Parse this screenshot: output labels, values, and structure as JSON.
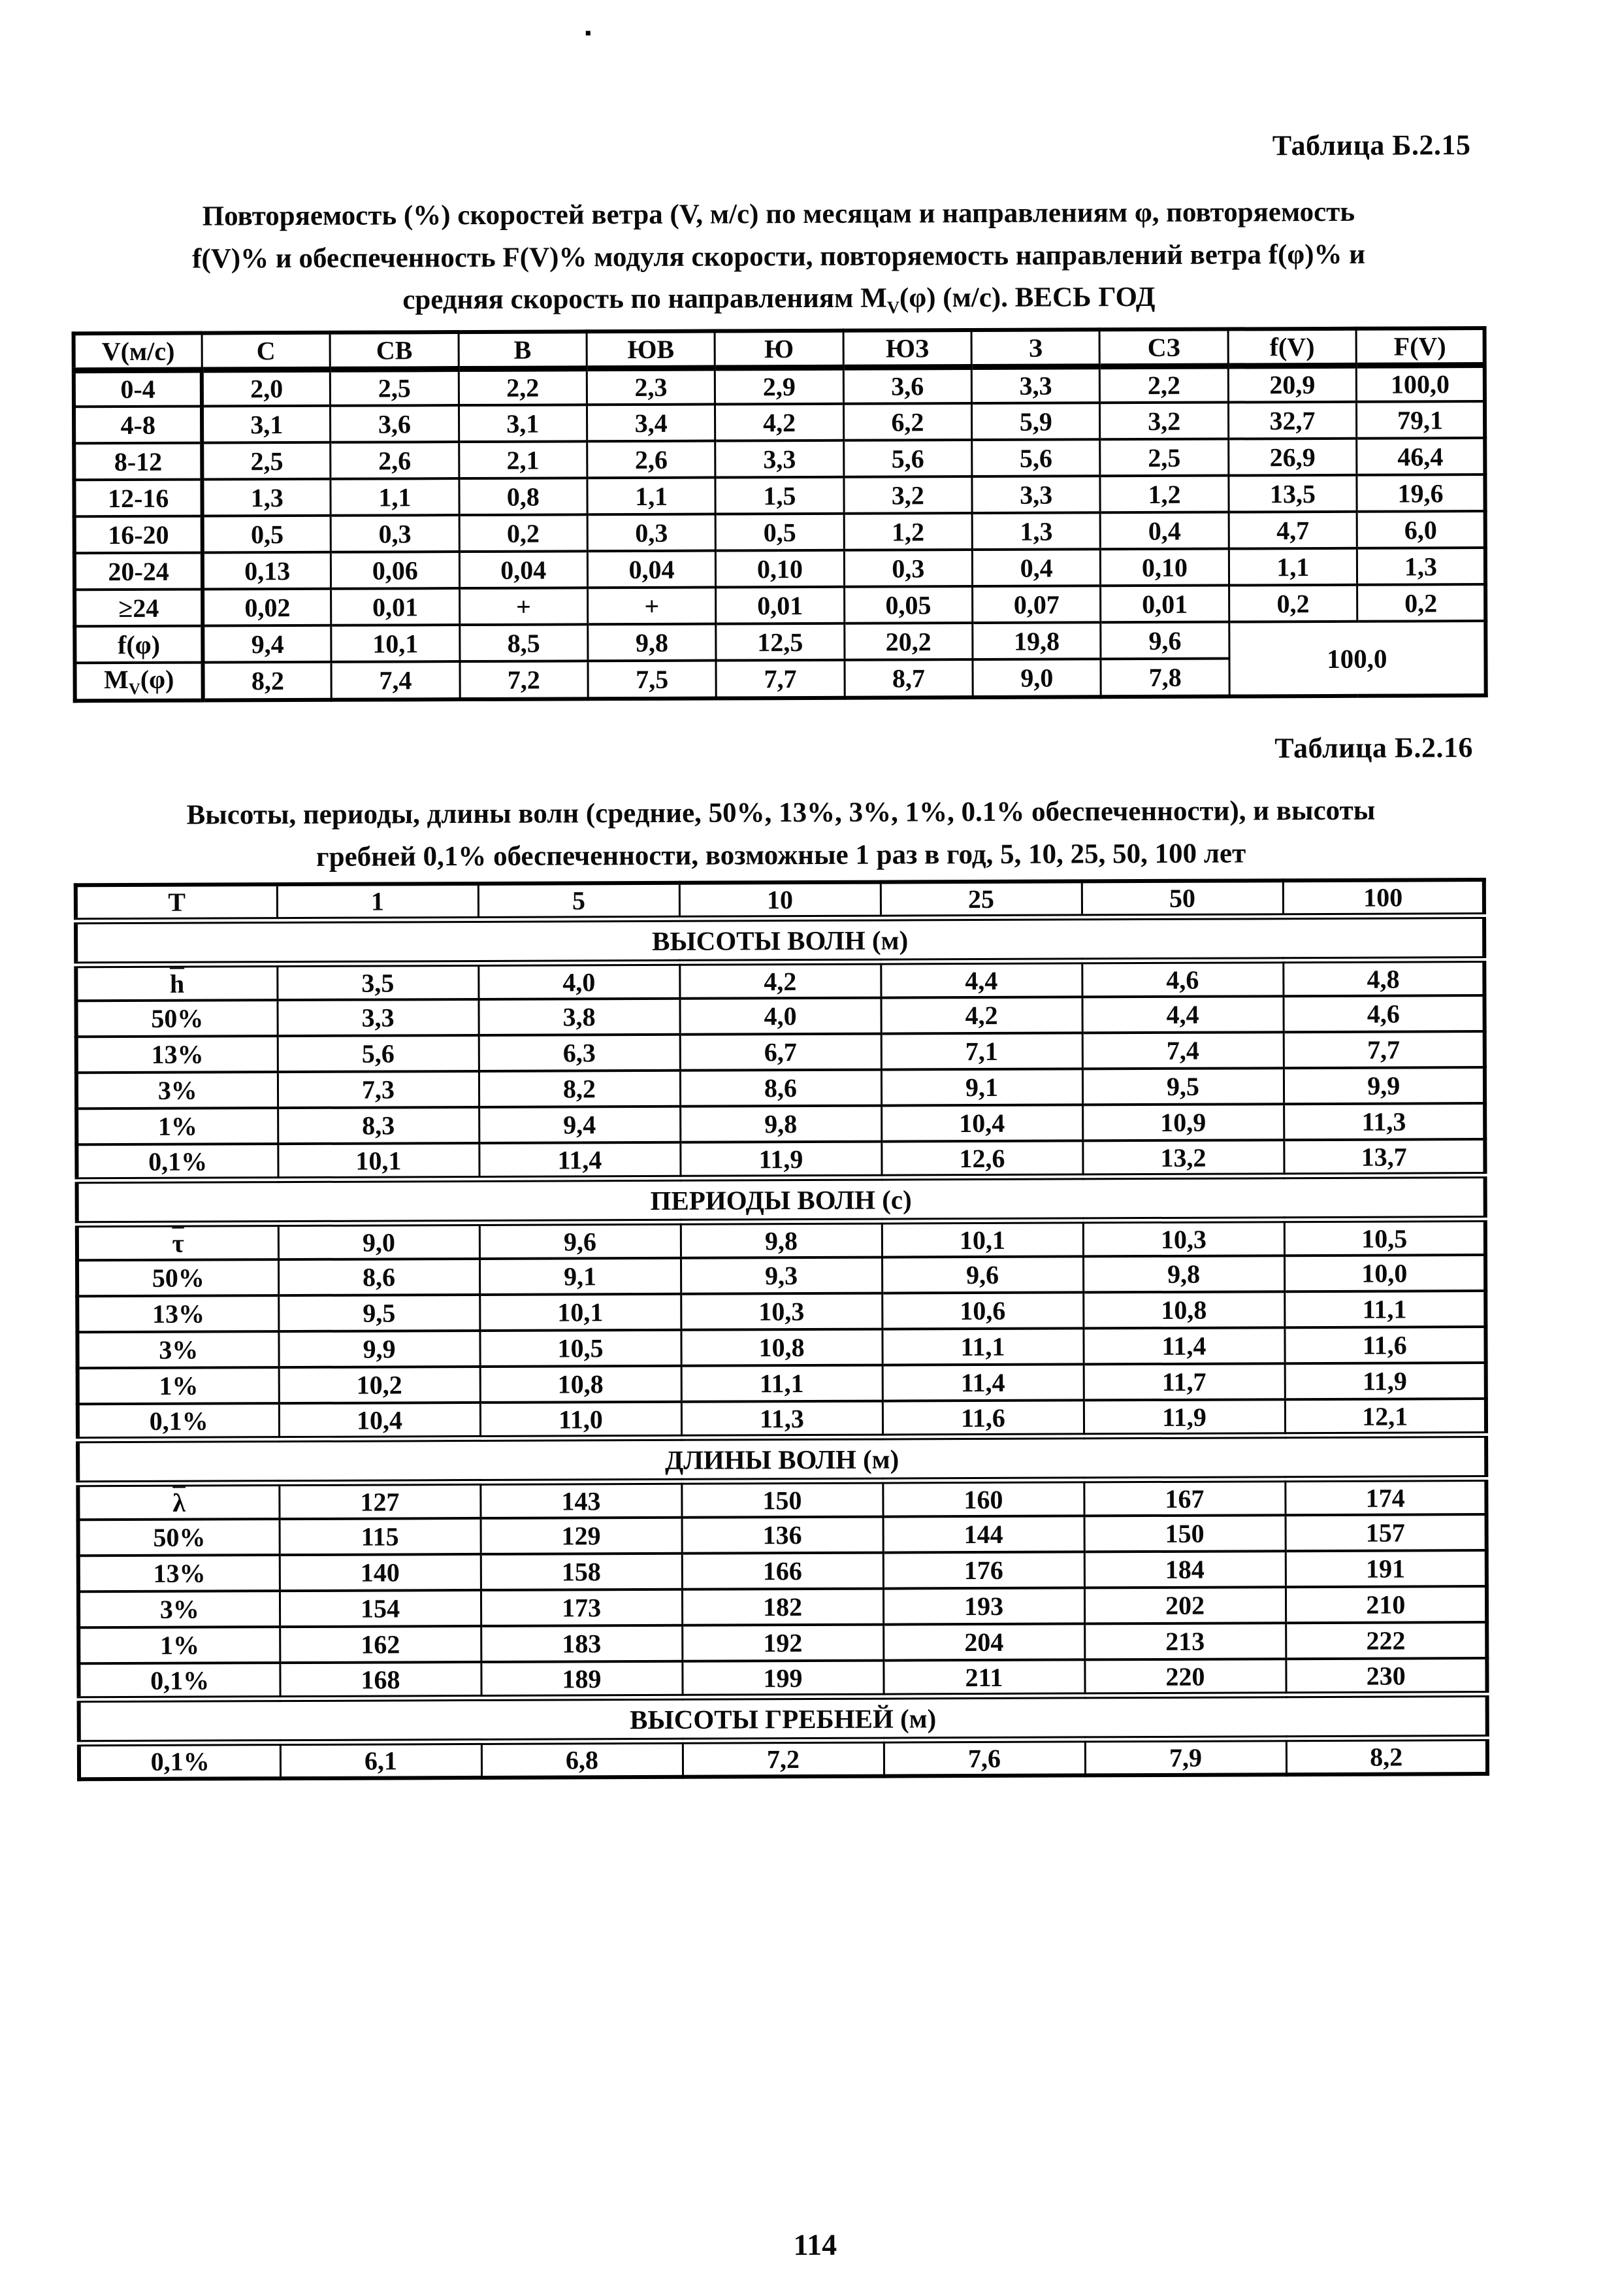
{
  "page": {
    "number": "114"
  },
  "table1": {
    "caption": "Таблица Б.2.15",
    "title_lines": {
      "line1": "Повторяемость (%) скоростей ветра (V, м/с) по месяцам и направлениям φ, повторяемость",
      "line2": "f(V)% и обеспеченность F(V)% модуля скорости, повторяемость направлений ветра f(φ)% и",
      "line3_pre": "средняя скорость по направлениям М",
      "line3_sub": "V",
      "line3_post": "(φ) (м/с). ВЕСЬ ГОД"
    },
    "col_headers": [
      "V(м/с)",
      "С",
      "СВ",
      "В",
      "ЮВ",
      "Ю",
      "ЮЗ",
      "З",
      "СЗ",
      "f(V)",
      "F(V)"
    ],
    "rows": [
      {
        "label": {
          "t": "0-4"
        },
        "values": [
          "2,0",
          "2,5",
          "2,2",
          "2,3",
          "2,9",
          "3,6",
          "3,3",
          "2,2",
          "20,9",
          "100,0"
        ]
      },
      {
        "label": {
          "t": "4-8"
        },
        "values": [
          "3,1",
          "3,6",
          "3,1",
          "3,4",
          "4,2",
          "6,2",
          "5,9",
          "3,2",
          "32,7",
          "79,1"
        ]
      },
      {
        "label": {
          "t": "8-12"
        },
        "values": [
          "2,5",
          "2,6",
          "2,1",
          "2,6",
          "3,3",
          "5,6",
          "5,6",
          "2,5",
          "26,9",
          "46,4"
        ]
      },
      {
        "label": {
          "t": "12-16"
        },
        "values": [
          "1,3",
          "1,1",
          "0,8",
          "1,1",
          "1,5",
          "3,2",
          "3,3",
          "1,2",
          "13,5",
          "19,6"
        ]
      },
      {
        "label": {
          "t": "16-20"
        },
        "values": [
          "0,5",
          "0,3",
          "0,2",
          "0,3",
          "0,5",
          "1,2",
          "1,3",
          "0,4",
          "4,7",
          "6,0"
        ]
      },
      {
        "label": {
          "t": "20-24"
        },
        "values": [
          "0,13",
          "0,06",
          "0,04",
          "0,04",
          "0,10",
          "0,3",
          "0,4",
          "0,10",
          "1,1",
          "1,3"
        ]
      },
      {
        "label": {
          "t": "≥24"
        },
        "values": [
          "0,02",
          "0,01",
          "+",
          "+",
          "0,01",
          "0,05",
          "0,07",
          "0,01",
          "0,2",
          "0,2"
        ]
      },
      {
        "label": {
          "t": "f(φ)"
        },
        "values": [
          "9,4",
          "10,1",
          "8,5",
          "9,8",
          "12,5",
          "20,2",
          "19,8",
          "9,6"
        ],
        "merged": {
          "text": "100,0",
          "rowspan": 2,
          "colspan": 2
        }
      },
      {
        "label": {
          "t": "М",
          "sub": "V",
          "post": "(φ)"
        },
        "values": [
          "8,2",
          "7,4",
          "7,2",
          "7,5",
          "7,7",
          "8,7",
          "9,0",
          "7,8"
        ]
      }
    ]
  },
  "table2": {
    "caption": "Таблица Б.2.16",
    "title_lines": {
      "line1": "Высоты, периоды, длины волн (средние, 50%, 13%, 3%, 1%, 0.1% обеспеченности), и высоты",
      "line2": "гребней 0,1% обеспеченности, возможные 1 раз в год, 5, 10, 25, 50, 100 лет"
    },
    "col_headers": [
      "Т",
      "1",
      "5",
      "10",
      "25",
      "50",
      "100"
    ],
    "sections": [
      {
        "header": "ВЫСОТЫ ВОЛН (м)",
        "rows": [
          {
            "label": {
              "t": "h",
              "over": true
            },
            "values": [
              "3,5",
              "4,0",
              "4,2",
              "4,4",
              "4,6",
              "4,8"
            ]
          },
          {
            "label": {
              "t": "50%"
            },
            "values": [
              "3,3",
              "3,8",
              "4,0",
              "4,2",
              "4,4",
              "4,6"
            ]
          },
          {
            "label": {
              "t": "13%"
            },
            "values": [
              "5,6",
              "6,3",
              "6,7",
              "7,1",
              "7,4",
              "7,7"
            ]
          },
          {
            "label": {
              "t": "3%"
            },
            "values": [
              "7,3",
              "8,2",
              "8,6",
              "9,1",
              "9,5",
              "9,9"
            ]
          },
          {
            "label": {
              "t": "1%"
            },
            "values": [
              "8,3",
              "9,4",
              "9,8",
              "10,4",
              "10,9",
              "11,3"
            ]
          },
          {
            "label": {
              "t": "0,1%"
            },
            "values": [
              "10,1",
              "11,4",
              "11,9",
              "12,6",
              "13,2",
              "13,7"
            ]
          }
        ]
      },
      {
        "header": "ПЕРИОДЫ ВОЛН (с)",
        "rows": [
          {
            "label": {
              "t": "τ",
              "over": true
            },
            "values": [
              "9,0",
              "9,6",
              "9,8",
              "10,1",
              "10,3",
              "10,5"
            ]
          },
          {
            "label": {
              "t": "50%"
            },
            "values": [
              "8,6",
              "9,1",
              "9,3",
              "9,6",
              "9,8",
              "10,0"
            ]
          },
          {
            "label": {
              "t": "13%"
            },
            "values": [
              "9,5",
              "10,1",
              "10,3",
              "10,6",
              "10,8",
              "11,1"
            ]
          },
          {
            "label": {
              "t": "3%"
            },
            "values": [
              "9,9",
              "10,5",
              "10,8",
              "11,1",
              "11,4",
              "11,6"
            ]
          },
          {
            "label": {
              "t": "1%"
            },
            "values": [
              "10,2",
              "10,8",
              "11,1",
              "11,4",
              "11,7",
              "11,9"
            ]
          },
          {
            "label": {
              "t": "0,1%"
            },
            "values": [
              "10,4",
              "11,0",
              "11,3",
              "11,6",
              "11,9",
              "12,1"
            ]
          }
        ]
      },
      {
        "header": "ДЛИНЫ ВОЛН (м)",
        "rows": [
          {
            "label": {
              "t": "λ",
              "over": true
            },
            "values": [
              "127",
              "143",
              "150",
              "160",
              "167",
              "174"
            ]
          },
          {
            "label": {
              "t": "50%"
            },
            "values": [
              "115",
              "129",
              "136",
              "144",
              "150",
              "157"
            ]
          },
          {
            "label": {
              "t": "13%"
            },
            "values": [
              "140",
              "158",
              "166",
              "176",
              "184",
              "191"
            ]
          },
          {
            "label": {
              "t": "3%"
            },
            "values": [
              "154",
              "173",
              "182",
              "193",
              "202",
              "210"
            ]
          },
          {
            "label": {
              "t": "1%"
            },
            "values": [
              "162",
              "183",
              "192",
              "204",
              "213",
              "222"
            ]
          },
          {
            "label": {
              "t": "0,1%"
            },
            "values": [
              "168",
              "189",
              "199",
              "211",
              "220",
              "230"
            ]
          }
        ]
      },
      {
        "header": "ВЫСОТЫ ГРЕБНЕЙ (м)",
        "rows": [
          {
            "label": {
              "t": "0,1%"
            },
            "values": [
              "6,1",
              "6,8",
              "7,2",
              "7,6",
              "7,9",
              "8,2"
            ]
          }
        ]
      }
    ]
  }
}
